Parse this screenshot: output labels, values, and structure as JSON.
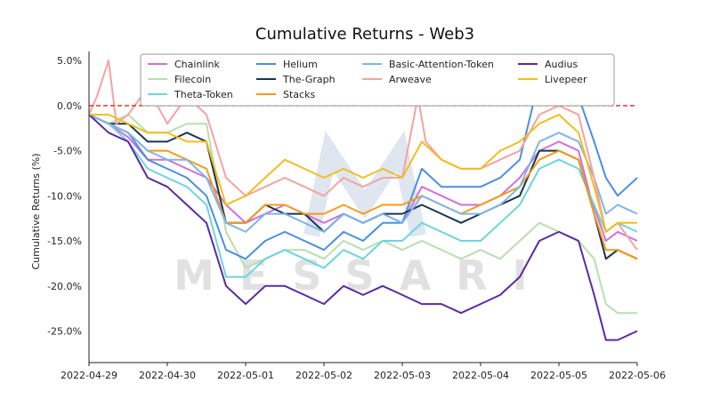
{
  "chart_data": {
    "type": "line",
    "title": "Cumulative Returns - Web3",
    "xlabel": "",
    "ylabel": "Cumulative Returns (%)",
    "watermark": "MESSARI",
    "x_ticks": [
      "2022-04-29",
      "2022-04-30",
      "2022-05-01",
      "2022-05-02",
      "2022-05-03",
      "2022-05-04",
      "2022-05-05",
      "2022-05-06"
    ],
    "y_ticks": [
      5,
      0,
      -5,
      -10,
      -15,
      -20,
      -25
    ],
    "y_tick_labels": [
      "5.0%",
      "0.0%",
      "-5.0%",
      "-10.0%",
      "-15.0%",
      "-20.0%",
      "-25.0%"
    ],
    "xlim": [
      0,
      7
    ],
    "ylim": [
      -28.5,
      6
    ],
    "reference_line": {
      "y": 0,
      "color": "#e53935",
      "style": "dashed"
    },
    "grid": false,
    "legend_position": "top",
    "series": [
      {
        "name": "Chainlink",
        "color": "#d070d8",
        "values": [
          [
            0,
            -1
          ],
          [
            0.25,
            -2
          ],
          [
            0.5,
            -3.5
          ],
          [
            0.75,
            -6
          ],
          [
            1,
            -6
          ],
          [
            1.25,
            -7
          ],
          [
            1.5,
            -8
          ],
          [
            1.75,
            -11
          ],
          [
            2,
            -13
          ],
          [
            2.25,
            -12
          ],
          [
            2.5,
            -11
          ],
          [
            2.75,
            -12
          ],
          [
            3,
            -13
          ],
          [
            3.25,
            -12
          ],
          [
            3.5,
            -13
          ],
          [
            3.75,
            -12
          ],
          [
            4,
            -13
          ],
          [
            4.25,
            -9
          ],
          [
            4.5,
            -10
          ],
          [
            4.75,
            -11
          ],
          [
            5,
            -11
          ],
          [
            5.25,
            -10
          ],
          [
            5.5,
            -8
          ],
          [
            5.75,
            -5
          ],
          [
            6,
            -4
          ],
          [
            6.25,
            -5
          ],
          [
            6.4,
            -10
          ],
          [
            6.6,
            -15
          ],
          [
            6.75,
            -14
          ],
          [
            7,
            -15
          ]
        ]
      },
      {
        "name": "Filecoin",
        "color": "#b8dfae",
        "values": [
          [
            0,
            -1
          ],
          [
            0.25,
            -2
          ],
          [
            0.5,
            -1
          ],
          [
            0.75,
            -3
          ],
          [
            1,
            -3
          ],
          [
            1.25,
            -2
          ],
          [
            1.5,
            -2
          ],
          [
            1.75,
            -14
          ],
          [
            2,
            -18
          ],
          [
            2.25,
            -17
          ],
          [
            2.5,
            -16
          ],
          [
            2.75,
            -16
          ],
          [
            3,
            -17
          ],
          [
            3.25,
            -15
          ],
          [
            3.5,
            -16
          ],
          [
            3.75,
            -15
          ],
          [
            4,
            -16
          ],
          [
            4.25,
            -15
          ],
          [
            4.5,
            -16
          ],
          [
            4.75,
            -17
          ],
          [
            5,
            -16
          ],
          [
            5.25,
            -17
          ],
          [
            5.5,
            -15
          ],
          [
            5.75,
            -13
          ],
          [
            6,
            -14
          ],
          [
            6.25,
            -15
          ],
          [
            6.45,
            -17
          ],
          [
            6.6,
            -22
          ],
          [
            6.75,
            -23
          ],
          [
            7,
            -23
          ]
        ]
      },
      {
        "name": "Theta-Token",
        "color": "#6dd4e0",
        "values": [
          [
            0,
            -1
          ],
          [
            0.25,
            -2
          ],
          [
            0.5,
            -4
          ],
          [
            0.75,
            -7
          ],
          [
            1,
            -8
          ],
          [
            1.25,
            -9
          ],
          [
            1.5,
            -11
          ],
          [
            1.75,
            -19
          ],
          [
            2,
            -19
          ],
          [
            2.25,
            -17
          ],
          [
            2.5,
            -16
          ],
          [
            2.75,
            -17
          ],
          [
            3,
            -18
          ],
          [
            3.25,
            -16
          ],
          [
            3.5,
            -17
          ],
          [
            3.75,
            -15
          ],
          [
            4,
            -15
          ],
          [
            4.25,
            -13
          ],
          [
            4.5,
            -14
          ],
          [
            4.75,
            -15
          ],
          [
            5,
            -15
          ],
          [
            5.25,
            -13
          ],
          [
            5.5,
            -11
          ],
          [
            5.75,
            -7
          ],
          [
            6,
            -6
          ],
          [
            6.25,
            -7
          ],
          [
            6.45,
            -11
          ],
          [
            6.6,
            -14
          ],
          [
            6.75,
            -13
          ],
          [
            7,
            -14
          ]
        ]
      },
      {
        "name": "Helium",
        "color": "#4a8fe0",
        "values": [
          [
            0,
            -1
          ],
          [
            0.25,
            -2
          ],
          [
            0.5,
            -3
          ],
          [
            0.75,
            -6
          ],
          [
            1,
            -7
          ],
          [
            1.25,
            -8
          ],
          [
            1.5,
            -10
          ],
          [
            1.75,
            -16
          ],
          [
            2,
            -17
          ],
          [
            2.25,
            -15
          ],
          [
            2.5,
            -14
          ],
          [
            2.75,
            -15
          ],
          [
            3,
            -16
          ],
          [
            3.25,
            -14
          ],
          [
            3.5,
            -15
          ],
          [
            3.75,
            -13
          ],
          [
            4,
            -13
          ],
          [
            4.25,
            -7
          ],
          [
            4.5,
            -9
          ],
          [
            4.75,
            -9
          ],
          [
            5,
            -9
          ],
          [
            5.25,
            -8
          ],
          [
            5.5,
            -6
          ],
          [
            5.75,
            3
          ],
          [
            6,
            2
          ],
          [
            6.25,
            1
          ],
          [
            6.45,
            -4
          ],
          [
            6.6,
            -8
          ],
          [
            6.75,
            -10
          ],
          [
            7,
            -8
          ]
        ]
      },
      {
        "name": "The-Graph",
        "color": "#1a3550",
        "values": [
          [
            0,
            -1
          ],
          [
            0.25,
            -2
          ],
          [
            0.5,
            -2
          ],
          [
            0.75,
            -4
          ],
          [
            1,
            -4
          ],
          [
            1.25,
            -3
          ],
          [
            1.5,
            -4
          ],
          [
            1.75,
            -13
          ],
          [
            2,
            -13
          ],
          [
            2.25,
            -11
          ],
          [
            2.5,
            -12
          ],
          [
            2.75,
            -12
          ],
          [
            3,
            -14
          ],
          [
            3.25,
            -12
          ],
          [
            3.5,
            -13
          ],
          [
            3.75,
            -12
          ],
          [
            4,
            -12
          ],
          [
            4.25,
            -11
          ],
          [
            4.5,
            -12
          ],
          [
            4.75,
            -13
          ],
          [
            5,
            -12
          ],
          [
            5.25,
            -11
          ],
          [
            5.5,
            -10
          ],
          [
            5.75,
            -5
          ],
          [
            6,
            -5
          ],
          [
            6.25,
            -6
          ],
          [
            6.45,
            -12
          ],
          [
            6.6,
            -17
          ],
          [
            6.75,
            -16
          ],
          [
            7,
            -17
          ]
        ]
      },
      {
        "name": "Stacks",
        "color": "#f59b1a",
        "values": [
          [
            0,
            -1
          ],
          [
            0.25,
            -2
          ],
          [
            0.5,
            -3
          ],
          [
            0.75,
            -5
          ],
          [
            1,
            -5
          ],
          [
            1.25,
            -6
          ],
          [
            1.5,
            -7
          ],
          [
            1.75,
            -13
          ],
          [
            2,
            -13
          ],
          [
            2.25,
            -11
          ],
          [
            2.5,
            -11
          ],
          [
            2.75,
            -12
          ],
          [
            3,
            -12
          ],
          [
            3.25,
            -11
          ],
          [
            3.5,
            -12
          ],
          [
            3.75,
            -11
          ],
          [
            4,
            -11
          ],
          [
            4.25,
            -10
          ],
          [
            4.5,
            -11
          ],
          [
            4.75,
            -12
          ],
          [
            5,
            -11
          ],
          [
            5.25,
            -10
          ],
          [
            5.5,
            -9
          ],
          [
            5.75,
            -6
          ],
          [
            6,
            -5
          ],
          [
            6.25,
            -6
          ],
          [
            6.45,
            -12
          ],
          [
            6.6,
            -16
          ],
          [
            6.75,
            -16
          ],
          [
            7,
            -17
          ]
        ]
      },
      {
        "name": "Basic-Attention-Token",
        "color": "#7fb5e8",
        "values": [
          [
            0,
            -1
          ],
          [
            0.25,
            -2
          ],
          [
            0.5,
            -3
          ],
          [
            0.75,
            -5
          ],
          [
            1,
            -6
          ],
          [
            1.25,
            -6
          ],
          [
            1.5,
            -8
          ],
          [
            1.75,
            -13
          ],
          [
            2,
            -14
          ],
          [
            2.25,
            -12
          ],
          [
            2.5,
            -12
          ],
          [
            2.75,
            -13
          ],
          [
            3,
            -14
          ],
          [
            3.25,
            -12
          ],
          [
            3.5,
            -13
          ],
          [
            3.75,
            -12
          ],
          [
            4,
            -13
          ],
          [
            4.25,
            -10
          ],
          [
            4.5,
            -11
          ],
          [
            4.75,
            -12
          ],
          [
            5,
            -12
          ],
          [
            5.25,
            -11
          ],
          [
            5.5,
            -9
          ],
          [
            5.75,
            -4
          ],
          [
            6,
            -3
          ],
          [
            6.25,
            -4
          ],
          [
            6.45,
            -8
          ],
          [
            6.6,
            -12
          ],
          [
            6.75,
            -11
          ],
          [
            7,
            -12
          ]
        ]
      },
      {
        "name": "Arweave",
        "color": "#f4a3a0",
        "values": [
          [
            0,
            -1
          ],
          [
            0.1,
            1
          ],
          [
            0.25,
            5
          ],
          [
            0.35,
            -2
          ],
          [
            0.5,
            -1
          ],
          [
            0.75,
            2
          ],
          [
            1,
            -2
          ],
          [
            1.25,
            1
          ],
          [
            1.5,
            -1
          ],
          [
            1.75,
            -8
          ],
          [
            2,
            -10
          ],
          [
            2.25,
            -9
          ],
          [
            2.5,
            -8
          ],
          [
            2.75,
            -9
          ],
          [
            3,
            -10
          ],
          [
            3.25,
            -8
          ],
          [
            3.5,
            -9
          ],
          [
            3.75,
            -8
          ],
          [
            4,
            -8
          ],
          [
            4.2,
            1
          ],
          [
            4.3,
            -4
          ],
          [
            4.5,
            -6
          ],
          [
            4.75,
            -7
          ],
          [
            5,
            -7
          ],
          [
            5.25,
            -6
          ],
          [
            5.5,
            -5
          ],
          [
            5.75,
            -1
          ],
          [
            6,
            0
          ],
          [
            6.25,
            -1
          ],
          [
            6.45,
            -8
          ],
          [
            6.6,
            -14
          ],
          [
            6.75,
            -13
          ],
          [
            7,
            -16
          ]
        ]
      },
      {
        "name": "Audius",
        "color": "#5b2aa0",
        "values": [
          [
            0,
            -1
          ],
          [
            0.25,
            -3
          ],
          [
            0.5,
            -4
          ],
          [
            0.75,
            -8
          ],
          [
            1,
            -9
          ],
          [
            1.25,
            -11
          ],
          [
            1.5,
            -13
          ],
          [
            1.75,
            -20
          ],
          [
            2,
            -22
          ],
          [
            2.25,
            -20
          ],
          [
            2.5,
            -20
          ],
          [
            2.75,
            -21
          ],
          [
            3,
            -22
          ],
          [
            3.25,
            -20
          ],
          [
            3.5,
            -21
          ],
          [
            3.75,
            -20
          ],
          [
            4,
            -21
          ],
          [
            4.25,
            -22
          ],
          [
            4.5,
            -22
          ],
          [
            4.75,
            -23
          ],
          [
            5,
            -22
          ],
          [
            5.25,
            -21
          ],
          [
            5.5,
            -19
          ],
          [
            5.75,
            -15
          ],
          [
            6,
            -14
          ],
          [
            6.25,
            -15
          ],
          [
            6.45,
            -21
          ],
          [
            6.6,
            -26
          ],
          [
            6.75,
            -26
          ],
          [
            7,
            -25
          ]
        ]
      },
      {
        "name": "Livepeer",
        "color": "#f2be1e",
        "values": [
          [
            0,
            -1
          ],
          [
            0.25,
            -1
          ],
          [
            0.5,
            -2
          ],
          [
            0.75,
            -3
          ],
          [
            1,
            -3
          ],
          [
            1.25,
            -4
          ],
          [
            1.5,
            -4
          ],
          [
            1.75,
            -11
          ],
          [
            2,
            -10
          ],
          [
            2.25,
            -8
          ],
          [
            2.5,
            -6
          ],
          [
            2.75,
            -7
          ],
          [
            3,
            -8
          ],
          [
            3.25,
            -7
          ],
          [
            3.5,
            -8
          ],
          [
            3.75,
            -7
          ],
          [
            4,
            -8
          ],
          [
            4.25,
            -4
          ],
          [
            4.5,
            -6
          ],
          [
            4.75,
            -7
          ],
          [
            5,
            -7
          ],
          [
            5.25,
            -5
          ],
          [
            5.5,
            -4
          ],
          [
            5.75,
            -2
          ],
          [
            6,
            -1
          ],
          [
            6.25,
            -3
          ],
          [
            6.45,
            -9
          ],
          [
            6.6,
            -14
          ],
          [
            6.75,
            -13
          ],
          [
            7,
            -13
          ]
        ]
      }
    ]
  }
}
